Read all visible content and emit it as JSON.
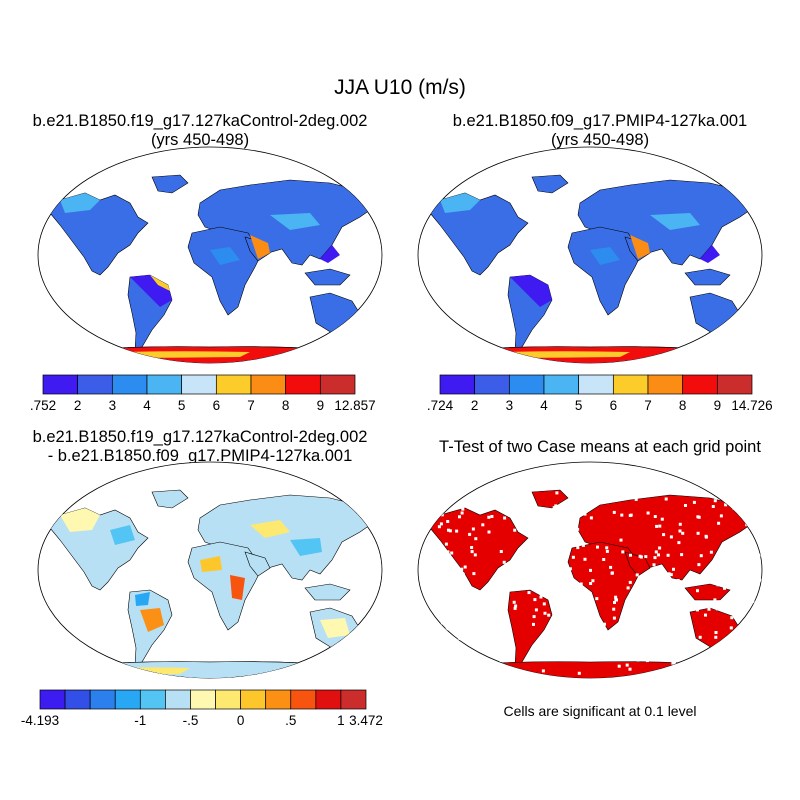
{
  "title": "JJA U10 (m/s)",
  "panels": [
    {
      "id": "control",
      "title_line1": "b.e21.B1850.f19_g17.127kaControl-2deg.002",
      "title_line2": "(yrs 450-498)",
      "colorbar": {
        "colors": [
          "#3f1bf2",
          "#3c5de8",
          "#2c8cf0",
          "#4ab5f2",
          "#c8e4f8",
          "#fccc2a",
          "#fb8c14",
          "#f20c0c",
          "#cb2c2c"
        ],
        "tick_labels": [
          ".752",
          "2",
          "3",
          "4",
          "5",
          "6",
          "7",
          "8",
          "9",
          "12.857"
        ]
      }
    },
    {
      "id": "pmip4",
      "title_line1": "b.e21.B1850.f09_g17.PMIP4-127ka.001",
      "title_line2": "(yrs 450-498)",
      "colorbar": {
        "colors": [
          "#3f1bf2",
          "#3c5de8",
          "#2c8cf0",
          "#4ab5f2",
          "#c8e4f8",
          "#fccc2a",
          "#fb8c14",
          "#f20c0c",
          "#cb2c2c"
        ],
        "tick_labels": [
          ".724",
          "2",
          "3",
          "4",
          "5",
          "6",
          "7",
          "8",
          "9",
          "14.726"
        ]
      }
    },
    {
      "id": "difference",
      "title_line1": "b.e21.B1850.f19_g17.127kaControl-2deg.002",
      "title_line2": "- b.e21.B1850.f09_g17.PMIP4-127ka.001",
      "colorbar": {
        "colors": [
          "#3d1cf2",
          "#3250e8",
          "#2b80ee",
          "#28a8f4",
          "#52c5f4",
          "#b8e0f4",
          "#fef8b0",
          "#fde870",
          "#fdc72c",
          "#fb9014",
          "#f75410",
          "#e11010",
          "#cb2c2c"
        ],
        "tick_labels": [
          "-4.193",
          "",
          "",
          "",
          "-1",
          "",
          "-.5",
          "",
          "0",
          "",
          ".5",
          "",
          "1",
          "3.472"
        ]
      }
    },
    {
      "id": "ttest",
      "title_line1": "T-Test of two Case means at each grid point",
      "note": "Cells are significant at 0.1 level",
      "significant_color": "#e50000"
    }
  ]
}
